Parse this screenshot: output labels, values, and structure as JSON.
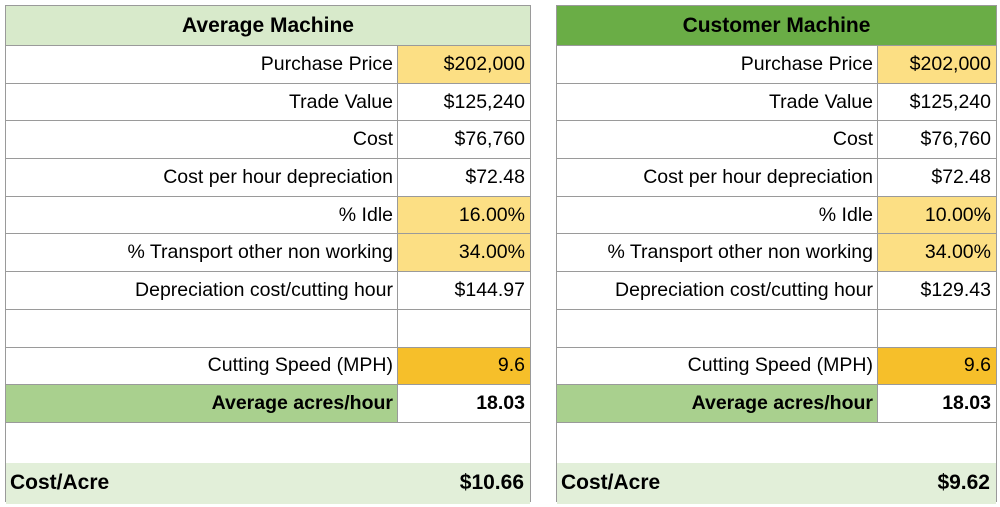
{
  "average": {
    "title": "Average Machine",
    "rows": [
      {
        "label": "Purchase Price",
        "value": "$202,000"
      },
      {
        "label": "Trade Value",
        "value": "$125,240"
      },
      {
        "label": "Cost",
        "value": "$76,760"
      },
      {
        "label": "Cost per hour depreciation",
        "value": "$72.48"
      },
      {
        "label": "% Idle",
        "value": "16.00%"
      },
      {
        "label": "% Transport other non working",
        "value": "34.00%"
      },
      {
        "label": "Depreciation cost/cutting hour",
        "value": "$144.97"
      },
      {
        "label": "",
        "value": ""
      },
      {
        "label": "Cutting Speed (MPH)",
        "value": "9.6"
      },
      {
        "label": "Average acres/hour",
        "value": "18.03"
      }
    ],
    "cost_label": "Cost/Acre",
    "cost_value": "$10.66"
  },
  "customer": {
    "title": "Customer Machine",
    "rows": [
      {
        "label": "Purchase Price",
        "value": "$202,000"
      },
      {
        "label": "Trade Value",
        "value": "$125,240"
      },
      {
        "label": "Cost",
        "value": "$76,760"
      },
      {
        "label": "Cost per hour depreciation",
        "value": "$72.48"
      },
      {
        "label": "% Idle",
        "value": "10.00%"
      },
      {
        "label": "% Transport other non working",
        "value": "34.00%"
      },
      {
        "label": "Depreciation cost/cutting hour",
        "value": "$129.43"
      },
      {
        "label": "",
        "value": ""
      },
      {
        "label": "Cutting Speed (MPH)",
        "value": "9.6"
      },
      {
        "label": "Average acres/hour",
        "value": "18.03"
      }
    ],
    "cost_label": "Cost/Acre",
    "cost_value": "$9.62"
  },
  "colors": {
    "header_light_green": "#d8eacb",
    "header_green": "#6aad46",
    "input_light_yellow": "#fcdf84",
    "input_orange": "#f6bf2a",
    "emphasis_green": "#a9d08e",
    "cost_row_green": "#e2efd9"
  }
}
